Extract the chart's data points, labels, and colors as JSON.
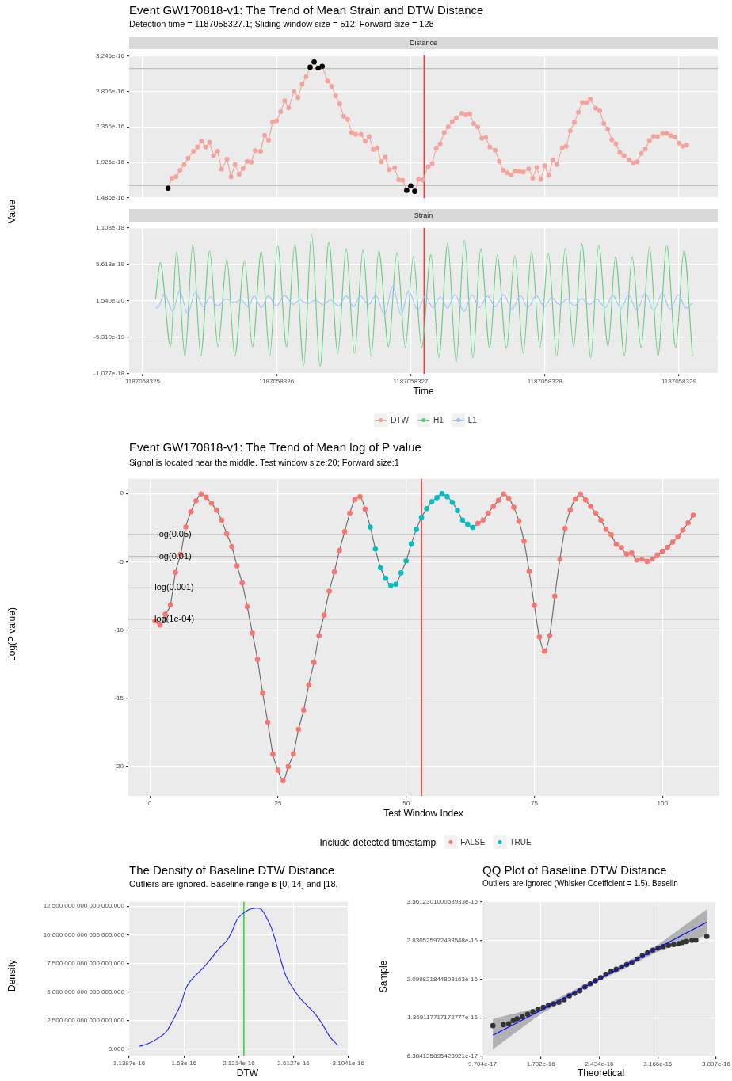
{
  "chart_data": [
    {
      "type": "line",
      "title": "Event GW170818-v1: The Trend of Mean Strain and DTW Distance",
      "subtitle": "Detection time = 1187058327.1; Sliding window size = 512; Forward size = 128",
      "ylabel": "Value",
      "annotations": [
        "Distance"
      ],
      "legend": "bottom",
      "marker": "circle",
      "grid": true,
      "tick_labels": "y",
      "xlim": [
        1187058324.9,
        1187058329.29
      ],
      "xticks": [
        1187058325,
        1187058326,
        1187058327,
        1187058328,
        1187058329
      ],
      "ylim": [
        1.484e-16,
        3.252e-16
      ],
      "yticks": [
        1.486e-16,
        1.926e-16,
        2.366e-16,
        2.806e-16,
        3.246e-16
      ],
      "ref_lines": [
        {
          "axis": "y",
          "value": 3.087e-16,
          "color": "#bfbfbf"
        },
        {
          "axis": "y",
          "value": 1.639e-16,
          "color": "#bfbfbf"
        },
        {
          "axis": "x",
          "value": 1187058327.1,
          "color": "#f53c3c"
        }
      ],
      "series": [
        {
          "name": "DTW",
          "type": "line",
          "color": "#f4a39c",
          "x": [
            1187058325.19,
            1187058325.22,
            1187058325.25,
            1187058325.28,
            1187058325.31,
            1187058325.34,
            1187058325.38,
            1187058325.41,
            1187058325.44,
            1187058325.47,
            1187058325.5,
            1187058325.53,
            1187058325.56,
            1187058325.59,
            1187058325.63,
            1187058325.66,
            1187058325.69,
            1187058325.72,
            1187058325.75,
            1187058325.78,
            1187058325.81,
            1187058325.84,
            1187058325.88,
            1187058325.91,
            1187058325.94,
            1187058325.97,
            1187058326,
            1187058326.03,
            1187058326.06,
            1187058326.09,
            1187058326.13,
            1187058326.16,
            1187058326.19,
            1187058326.22,
            1187058326.25,
            1187058326.28,
            1187058326.31,
            1187058326.34,
            1187058326.38,
            1187058326.41,
            1187058326.44,
            1187058326.47,
            1187058326.5,
            1187058326.53,
            1187058326.56,
            1187058326.59,
            1187058326.63,
            1187058326.66,
            1187058326.69,
            1187058326.72,
            1187058326.75,
            1187058326.78,
            1187058326.81,
            1187058326.84,
            1187058326.88,
            1187058326.91,
            1187058326.94,
            1187058326.97,
            1187058327,
            1187058327.03,
            1187058327.06,
            1187058327.09,
            1187058327.13,
            1187058327.16,
            1187058327.19,
            1187058327.22,
            1187058327.25,
            1187058327.28,
            1187058327.31,
            1187058327.34,
            1187058327.38,
            1187058327.41,
            1187058327.44,
            1187058327.47,
            1187058327.5,
            1187058327.53,
            1187058327.56,
            1187058327.59,
            1187058327.63,
            1187058327.66,
            1187058327.69,
            1187058327.72,
            1187058327.75,
            1187058327.78,
            1187058327.81,
            1187058327.84,
            1187058327.88,
            1187058327.91,
            1187058327.94,
            1187058327.97,
            1187058328,
            1187058328.03,
            1187058328.06,
            1187058328.09,
            1187058328.13,
            1187058328.16,
            1187058328.19,
            1187058328.22,
            1187058328.25,
            1187058328.28,
            1187058328.31,
            1187058328.34,
            1187058328.38,
            1187058328.41,
            1187058328.44,
            1187058328.47,
            1187058328.5,
            1187058328.53,
            1187058328.56,
            1187058328.59,
            1187058328.63,
            1187058328.66,
            1187058328.69,
            1187058328.72,
            1187058328.75,
            1187058328.78,
            1187058328.81,
            1187058328.84,
            1187058328.88,
            1187058328.91,
            1187058328.94,
            1187058328.97,
            1187058329,
            1187058329.03,
            1187058329.06
          ],
          "values": [
            1.606e-16,
            1.732e-16,
            1.748e-16,
            1.83e-16,
            1.901e-16,
            1.978e-16,
            2.065e-16,
            2.115e-16,
            2.191e-16,
            2.115e-16,
            2.175e-16,
            2.011e-16,
            2.065e-16,
            1.841e-16,
            1.967e-16,
            1.748e-16,
            1.901e-16,
            1.781e-16,
            1.852e-16,
            1.94e-16,
            1.929e-16,
            2.071e-16,
            2.065e-16,
            2.262e-16,
            2.202e-16,
            2.426e-16,
            2.442e-16,
            2.552e-16,
            2.688e-16,
            2.601e-16,
            2.803e-16,
            2.727e-16,
            2.896e-16,
            2.989e-16,
            3.104e-16,
            3.169e-16,
            3.093e-16,
            3.115e-16,
            2.934e-16,
            2.869e-16,
            2.749e-16,
            2.65e-16,
            2.497e-16,
            2.459e-16,
            2.295e-16,
            2.273e-16,
            2.273e-16,
            2.191e-16,
            2.246e-16,
            2.087e-16,
            2.109e-16,
            1.934e-16,
            1.994e-16,
            1.836e-16,
            1.858e-16,
            1.71e-16,
            1.705e-16,
            1.579e-16,
            1.634e-16,
            1.568e-16,
            1.716e-16,
            1.71e-16,
            1.874e-16,
            1.912e-16,
            2.104e-16,
            2.158e-16,
            2.295e-16,
            2.366e-16,
            2.432e-16,
            2.475e-16,
            2.535e-16,
            2.514e-16,
            2.524e-16,
            2.404e-16,
            2.366e-16,
            2.224e-16,
            2.235e-16,
            2.115e-16,
            2.076e-16,
            1.94e-16,
            1.83e-16,
            1.798e-16,
            1.77e-16,
            1.819e-16,
            1.814e-16,
            1.808e-16,
            1.847e-16,
            1.732e-16,
            1.863e-16,
            1.716e-16,
            1.885e-16,
            1.765e-16,
            1.956e-16,
            1.901e-16,
            2.109e-16,
            2.125e-16,
            2.317e-16,
            2.421e-16,
            2.546e-16,
            2.667e-16,
            2.667e-16,
            2.705e-16,
            2.596e-16,
            2.563e-16,
            2.41e-16,
            2.339e-16,
            2.207e-16,
            2.158e-16,
            2.049e-16,
            2.011e-16,
            1.956e-16,
            1.923e-16,
            1.934e-16,
            2.038e-16,
            2.093e-16,
            2.197e-16,
            2.251e-16,
            2.246e-16,
            2.284e-16,
            2.284e-16,
            2.257e-16,
            2.24e-16,
            2.164e-16,
            2.125e-16,
            2.142e-16
          ]
        },
        {
          "type": "scatter",
          "color": "#000000",
          "x": [
            1187058325.19,
            1187058326.25,
            1187058326.28,
            1187058326.31,
            1187058326.34,
            1187058326.97,
            1187058327,
            1187058327.03
          ],
          "values": [
            1.606e-16,
            3.104e-16,
            3.169e-16,
            3.093e-16,
            3.115e-16,
            1.579e-16,
            1.634e-16,
            1.568e-16
          ]
        }
      ]
    },
    {
      "type": "line",
      "xlabel": "Time",
      "annotations": [
        "Strain"
      ],
      "legend": "bottom",
      "marker": "none",
      "grid": true,
      "xlim": [
        1187058324.9,
        1187058329.29
      ],
      "xticks": [
        1187058325,
        1187058326,
        1187058327,
        1187058328,
        1187058329
      ],
      "ylim": [
        -1.077e-18,
        1.108e-18
      ],
      "yticks": [
        -1.077e-18,
        {
          "value": -5.31e-19,
          "label": "-5.310e-19"
        },
        {
          "value": 1.54e-20,
          "label": "1.540e-20"
        },
        5.618e-19,
        1.108e-18
      ],
      "ref_lines": [
        {
          "axis": "x",
          "value": 1187058327.1,
          "color": "#f53c3c"
        }
      ],
      "series": [
        {
          "name": "H1",
          "color": "#5fcd7b",
          "x": [
            1187058325.097,
            1187058325.132,
            1187058325.209,
            1187058325.254,
            1187058325.316,
            1187058325.375,
            1187058325.434,
            1187058325.5,
            1187058325.563,
            1187058325.629,
            1187058325.688,
            1187058325.761,
            1187058325.82,
            1187058325.886,
            1187058325.949,
            1187058326.008,
            1187058326.074,
            1187058326.136,
            1187058326.202,
            1187058326.261,
            1187058326.324,
            1187058326.39,
            1187058326.456,
            1187058326.519,
            1187058326.581,
            1187058326.644,
            1187058326.706,
            1187058326.762,
            1187058326.835,
            1187058326.897,
            1187058326.96,
            1187058327.019,
            1187058327.082,
            1187058327.151,
            1187058327.21,
            1187058327.276,
            1187058327.339,
            1187058327.401,
            1187058327.464,
            1187058327.523,
            1187058327.589,
            1187058327.645,
            1187058327.714,
            1187058327.777,
            1187058327.839,
            1187058327.902,
            1187058327.964,
            1187058328.027,
            1187058328.089,
            1187058328.152,
            1187058328.215,
            1187058328.277,
            1187058328.343,
            1187058328.402,
            1187058328.472,
            1187058328.527,
            1187058328.593,
            1187058328.652,
            1187058328.718,
            1187058328.781,
            1187058328.844,
            1187058328.91,
            1187058328.976,
            1187058329.038,
            1187058329.101
          ],
          "values": [
            4.2e-20,
            5.85e-19,
            -6.71e-19,
            7.62e-19,
            -8.07e-19,
            8.64e-19,
            -8.07e-19,
            7.62e-19,
            -6.71e-19,
            6.33e-19,
            -8.07e-19,
            6.19e-19,
            -6.71e-19,
            7.55e-19,
            -8.07e-19,
            8.43e-19,
            -6.71e-19,
            8.57e-19,
            -9.56e-19,
            1.013e-18,
            -9.69e-19,
            8.91e-19,
            -7.66e-19,
            7.96e-19,
            -7.66e-19,
            7.75e-19,
            -8.07e-19,
            7.62e-19,
            -6.71e-19,
            7.41e-19,
            -6.84e-19,
            6.74e-19,
            -6.84e-19,
            7.07e-19,
            -8.34e-19,
            8.77e-19,
            -9.02e-19,
            9.25e-19,
            -8.34e-19,
            7.96e-19,
            -6.98e-19,
            7.01e-19,
            -6.98e-19,
            6.94e-19,
            -7.66e-19,
            7.55e-19,
            -6.84e-19,
            7.21e-19,
            -8.07e-19,
            7.96e-19,
            -6.71e-19,
            8.64e-19,
            -8.34e-19,
            8.5e-19,
            -6.71e-19,
            6.74e-19,
            -8.07e-19,
            6.74e-19,
            -6.84e-19,
            8.23e-19,
            -8.07e-19,
            8.5e-19,
            -6.84e-19,
            7.69e-19,
            -8.07e-19
          ]
        },
        {
          "name": "L1",
          "color": "#9ec2fb",
          "x": [
            1187058325.097,
            1187058325.111,
            1187058325.163,
            1187058325.226,
            1187058325.275,
            1187058325.337,
            1187058325.393,
            1187058325.455,
            1187058325.504,
            1187058325.56,
            1187058325.622,
            1187058325.678,
            1187058325.733,
            1187058325.789,
            1187058325.831,
            1187058325.886,
            1187058325.938,
            1187058325.997,
            1187058326.06,
            1187058326.123,
            1187058326.171,
            1187058326.234,
            1187058326.289,
            1187058326.345,
            1187058326.4,
            1187058326.463,
            1187058326.519,
            1187058326.574,
            1187058326.623,
            1187058326.685,
            1187058326.741,
            1187058326.804,
            1187058326.866,
            1187058326.929,
            1187058326.984,
            1187058327.054,
            1187058327.109,
            1187058327.165,
            1187058327.221,
            1187058327.276,
            1187058327.328,
            1187058327.398,
            1187058327.457,
            1187058327.513,
            1187058327.572,
            1187058327.631,
            1187058327.693,
            1187058327.756,
            1187058327.818,
            1187058327.874,
            1187058327.937,
            1187058327.999,
            1187058328.048,
            1187058328.11,
            1187058328.166,
            1187058328.222,
            1187058328.274,
            1187058328.333,
            1187058328.388,
            1187058328.451,
            1187058328.506,
            1187058328.569,
            1187058328.625,
            1187058328.687,
            1187058328.75,
            1187058328.812,
            1187058328.875,
            1187058328.934,
            1187058328.997,
            1187058329.052,
            1187058329.101
          ],
          "values": [
            -7.3e-20,
            -9.4e-20,
            1.17e-19,
            -1.41e-19,
            1.64e-19,
            -1.75e-19,
            1.44e-19,
            -7.3e-20,
            7.6e-20,
            -6e-20,
            4.2e-20,
            -5e-21,
            2.9e-20,
            -7.3e-20,
            9e-20,
            -8.7e-20,
            9e-20,
            -6e-20,
            9.6e-20,
            -3.9e-20,
            2.9e-20,
            -2.6e-20,
            2.9e-20,
            -3.9e-20,
            2.9e-20,
            -6e-20,
            9e-20,
            -7.3e-20,
            9e-20,
            -3.9e-20,
            9.6e-20,
            -1.96e-19,
            2.32e-19,
            -1.96e-19,
            1.64e-19,
            -1.28e-19,
            9.6e-20,
            -8.7e-20,
            7.6e-20,
            -9.4e-20,
            1.1e-19,
            -1.41e-19,
            1.1e-19,
            -8.7e-20,
            9e-20,
            -7.3e-20,
            1.1e-19,
            -1.07e-19,
            9.6e-20,
            -8.7e-20,
            9.6e-20,
            -7.3e-20,
            6.3e-20,
            -3.9e-20,
            4.2e-20,
            -6e-20,
            4.9e-20,
            -3.9e-20,
            4.2e-20,
            -8.7e-20,
            9.6e-20,
            -9.4e-20,
            9.6e-20,
            -1.28e-19,
            1.3e-19,
            -1.28e-19,
            1.3e-19,
            -1.07e-19,
            1.1e-19,
            -9.4e-20,
            -1.9e-20
          ]
        }
      ]
    },
    {
      "type": "line",
      "title": "Event GW170818-v1: The Trend of Mean log of P value",
      "subtitle": "Signal is located near the middle. Test window size:20; Forward size:1",
      "xlabel": "Test Window Index",
      "ylabel": "Log(P value)",
      "legend": "bottom",
      "legend_title": "Include detected timestamp",
      "grid": true,
      "xlim": [
        -4.2,
        111.1
      ],
      "xticks": [
        0,
        25,
        50,
        75,
        100
      ],
      "ylim": [
        -22.15,
        1.07
      ],
      "yticks": [
        -20,
        -15,
        -10,
        -5,
        0
      ],
      "ref_lines": [
        {
          "axis": "y",
          "value": -2.996,
          "label": "log(0.05)",
          "color": "#bfbfbf"
        },
        {
          "axis": "y",
          "value": -4.605,
          "label": "log(0.01)",
          "color": "#bfbfbf"
        },
        {
          "axis": "y",
          "value": -6.908,
          "label": "log(0.001)",
          "color": "#bfbfbf"
        },
        {
          "axis": "y",
          "value": -9.21,
          "label": "log(1e-04)",
          "color": "#bfbfbf"
        },
        {
          "axis": "x",
          "value": 53,
          "color": "#f53c3c"
        }
      ],
      "series": [
        {
          "type": "line",
          "color": "#666666",
          "x": [
            1,
            2,
            3,
            4,
            5,
            6,
            7,
            8,
            9,
            10,
            11,
            12,
            13,
            14,
            15,
            16,
            17,
            18,
            19,
            20,
            21,
            22,
            23,
            24,
            25,
            26,
            27,
            28,
            29,
            30,
            31,
            32,
            33,
            34,
            35,
            36,
            37,
            38,
            39,
            40,
            41,
            42,
            43,
            44,
            45,
            46,
            47,
            48,
            49,
            50,
            51,
            52,
            53,
            54,
            55,
            56,
            57,
            58,
            59,
            60,
            61,
            62,
            63,
            64,
            65,
            66,
            67,
            68,
            69,
            70,
            71,
            72,
            73,
            74,
            75,
            76,
            77,
            78,
            79,
            80,
            81,
            82,
            83,
            84,
            85,
            86,
            87,
            88,
            89,
            90,
            91,
            92,
            93,
            94,
            95,
            96,
            97,
            98,
            99,
            100,
            101,
            102,
            103,
            104,
            105,
            106
          ],
          "values": [
            -9.33,
            -9.63,
            -8.83,
            -8.15,
            -5.77,
            -4.46,
            -2.45,
            -1.34,
            -0.54,
            -0.03,
            -0.27,
            -0.7,
            -1.21,
            -1.95,
            -2.95,
            -3.89,
            -5.3,
            -6.54,
            -8.29,
            -10.23,
            -12.15,
            -14.6,
            -16.75,
            -19.09,
            -20.27,
            -21.04,
            -20,
            -19.06,
            -17.28,
            -15.87,
            -14.03,
            -12.38,
            -10.4,
            -8.89,
            -7.15,
            -5.74,
            -4.16,
            -2.79,
            -1.44,
            -0.44,
            -0.23,
            -1.14,
            -2.45,
            -4.06,
            -5.44,
            -6.21,
            -6.74,
            -6.64,
            -5.81,
            -4.93,
            -3.69,
            -2.62,
            -1.74,
            -1.11,
            -0.6,
            -0.3,
            0,
            -0.23,
            -0.64,
            -1.24,
            -1.95,
            -2.25,
            -2.48,
            -2.18,
            -1.95,
            -1.44,
            -0.94,
            -0.5,
            -0.03,
            -0.34,
            -1.01,
            -2.01,
            -3.49,
            -5.7,
            -8.19,
            -10.5,
            -11.54,
            -10.4,
            -7.52,
            -4.8,
            -2.55,
            -1.21,
            -0.4,
            -0.03,
            -0.47,
            -0.94,
            -1.44,
            -1.95,
            -2.62,
            -3.02,
            -3.72,
            -3.96,
            -4.43,
            -4.36,
            -4.87,
            -4.8,
            -4.97,
            -4.8,
            -4.5,
            -4.23,
            -3.93,
            -3.56,
            -3.15,
            -2.68,
            -2.15,
            -1.58
          ]
        },
        {
          "name": "FALSE",
          "type": "scatter",
          "color": "#f8766d",
          "x": [
            1,
            2,
            3,
            4,
            5,
            6,
            7,
            8,
            9,
            10,
            11,
            12,
            13,
            14,
            15,
            16,
            17,
            18,
            19,
            20,
            21,
            22,
            23,
            24,
            25,
            26,
            27,
            28,
            29,
            30,
            31,
            32,
            33,
            34,
            35,
            36,
            37,
            38,
            39,
            40,
            41,
            42,
            64,
            65,
            66,
            67,
            68,
            69,
            70,
            71,
            72,
            73,
            74,
            75,
            76,
            77,
            78,
            79,
            80,
            81,
            82,
            83,
            84,
            85,
            86,
            87,
            88,
            89,
            90,
            91,
            92,
            93,
            94,
            95,
            96,
            97,
            98,
            99,
            100,
            101,
            102,
            103,
            104,
            105,
            106
          ],
          "values": [
            -9.33,
            -9.63,
            -8.83,
            -8.15,
            -5.77,
            -4.46,
            -2.45,
            -1.34,
            -0.54,
            -0.03,
            -0.27,
            -0.7,
            -1.21,
            -1.95,
            -2.95,
            -3.89,
            -5.3,
            -6.54,
            -8.29,
            -10.23,
            -12.15,
            -14.6,
            -16.75,
            -19.09,
            -20.27,
            -21.04,
            -20,
            -19.06,
            -17.28,
            -15.87,
            -14.03,
            -12.38,
            -10.4,
            -8.89,
            -7.15,
            -5.74,
            -4.16,
            -2.79,
            -1.44,
            -0.44,
            -0.23,
            -1.14,
            -2.18,
            -1.95,
            -1.44,
            -0.94,
            -0.5,
            -0.03,
            -0.34,
            -1.01,
            -2.01,
            -3.49,
            -5.7,
            -8.19,
            -10.5,
            -11.54,
            -10.4,
            -7.52,
            -4.8,
            -2.55,
            -1.21,
            -0.4,
            -0.03,
            -0.47,
            -0.94,
            -1.44,
            -1.95,
            -2.62,
            -3.02,
            -3.72,
            -3.96,
            -4.43,
            -4.36,
            -4.87,
            -4.8,
            -4.97,
            -4.8,
            -4.5,
            -4.23,
            -3.93,
            -3.56,
            -3.15,
            -2.68,
            -2.15,
            -1.58
          ]
        },
        {
          "name": "TRUE",
          "type": "scatter",
          "color": "#00bfc4",
          "x": [
            43,
            44,
            45,
            46,
            47,
            48,
            49,
            50,
            51,
            52,
            53,
            54,
            55,
            56,
            57,
            58,
            59,
            60,
            61,
            62,
            63
          ],
          "values": [
            -2.45,
            -4.06,
            -5.44,
            -6.21,
            -6.74,
            -6.64,
            -5.81,
            -4.93,
            -3.69,
            -2.62,
            -1.74,
            -1.11,
            -0.6,
            -0.3,
            0,
            -0.23,
            -0.64,
            -1.24,
            -1.95,
            -2.25,
            -2.48
          ]
        }
      ]
    },
    {
      "type": "line",
      "title": "The Density of Baseline DTW Distance",
      "subtitle": "Outliers are ignored. Baseline range is [0, 14] and [18,",
      "xlabel": "DTW",
      "ylabel": "Density",
      "grid": true,
      "xlim": [
        1.1387e-16,
        3.11e-16
      ],
      "xticks": [
        1.1387e-16,
        1.63e-16,
        2.1214e-16,
        2.6127e-16,
        3.1041e-16
      ],
      "ylim": [
        -555000000000000.0,
        1.2877e+16
      ],
      "yticks": [
        {
          "value": 0,
          "label": "0.000"
        },
        {
          "value": 2500000000000000.0,
          "label": "2 500 000 000 000 000.000"
        },
        {
          "value": 5000000000000000.0,
          "label": "5 000 000 000 000 000.000"
        },
        {
          "value": 7500000000000000.0,
          "label": "7 500 000 000 000 000.000"
        },
        {
          "value": 1e+16,
          "label": "10 000 000 000 000 000.000"
        },
        {
          "value": 1.25e+16,
          "label": "12 500 000 000 000 000.000"
        }
      ],
      "ref_lines": [
        {
          "axis": "x",
          "value": 2.167e-16,
          "color": "#33dd33"
        }
      ],
      "series": [
        {
          "color": "#2020ff",
          "x": [
            1.233e-16,
            1.298e-16,
            1.386e-16,
            1.473e-16,
            1.538e-16,
            1.604e-16,
            1.648e-16,
            1.691e-16,
            1.757e-16,
            1.822e-16,
            1.888e-16,
            1.953e-16,
            2.019e-16,
            2.062e-16,
            2.106e-16,
            2.167e-16,
            2.215e-16,
            2.281e-16,
            2.324e-16,
            2.368e-16,
            2.412e-16,
            2.455e-16,
            2.499e-16,
            2.543e-16,
            2.608e-16,
            2.674e-16,
            2.739e-16,
            2.805e-16,
            2.87e-16,
            2.936e-16,
            3.012e-16
          ],
          "values": [
            266000000000000.0,
            444000000000000.0,
            888000000000000.0,
            1554000000000000.0,
            2664000000000000.0,
            3996000000000000.0,
            5329000000000000.0,
            5995000000000000.0,
            6661000000000000.0,
            7327000000000000.0,
            8104000000000000.0,
            8881000000000000.0,
            9547000000000000.0,
            1.0324e+16,
            1.1323e+16,
            1.1923e+16,
            1.2211e+16,
            1.2322e+16,
            1.2211e+16,
            1.1545e+16,
            1.0657e+16,
            9325000000000000.0,
            7771000000000000.0,
            6439000000000000.0,
            5329000000000000.0,
            4440000000000000.0,
            3774000000000000.0,
            3108000000000000.0,
            2220000000000000.0,
            1110000000000000.0,
            333000000000000.0
          ]
        }
      ]
    },
    {
      "type": "scatter",
      "title": "QQ Plot of Baseline DTW Distance",
      "subtitle": "Outliers are ignored (Whisker Coefficient = 1.5). Baselin",
      "xlabel": "Theoretical",
      "ylabel": "Sample",
      "grid": true,
      "xlim": [
        9.704e-17,
        3.897e-16
      ],
      "xticks": [
        9.704e-17,
        1.702e-16,
        2.434e-16,
        3.166e-16,
        3.897e-16
      ],
      "ylim": [
        6.384135895423921e-17,
        3.561230100063933e-16
      ],
      "yticks": [
        {
          "value": 6.384135895423921e-17,
          "label": "6.384135895423921e-17"
        },
        {
          "value": 1.369117717172777e-16,
          "label": "1.369117717172777e-16"
        },
        {
          "value": 2.099821844803163e-16,
          "label": "2.099821844803163e-16"
        },
        {
          "value": 2.830525972433548e-16,
          "label": "2.830525972433548e-16"
        },
        {
          "value": 3.561230100063933e-16,
          "label": "3.561230100063933e-16"
        }
      ],
      "series": [
        {
          "type": "scatter",
          "color": "#333333",
          "x": [
            1.101e-16,
            1.232e-16,
            1.3e-16,
            1.356e-16,
            1.405e-16,
            1.47e-16,
            1.536e-16,
            1.601e-16,
            1.666e-16,
            1.732e-16,
            1.797e-16,
            1.862e-16,
            1.928e-16,
            1.993e-16,
            2.058e-16,
            2.124e-16,
            2.189e-16,
            2.254e-16,
            2.32e-16,
            2.385e-16,
            2.45e-16,
            2.516e-16,
            2.581e-16,
            2.646e-16,
            2.712e-16,
            2.777e-16,
            2.842e-16,
            2.908e-16,
            2.973e-16,
            3.038e-16,
            3.104e-16,
            3.169e-16,
            3.234e-16,
            3.3e-16,
            3.365e-16,
            3.43e-16,
            3.479e-16,
            3.528e-16,
            3.594e-16,
            3.643e-16,
            3.78e-16
          ],
          "values": [
            1.22e-16,
            1.239e-16,
            1.254e-16,
            1.316e-16,
            1.35e-16,
            1.388e-16,
            1.436e-16,
            1.485e-16,
            1.528e-16,
            1.566e-16,
            1.605e-16,
            1.634e-16,
            1.662e-16,
            1.71e-16,
            1.783e-16,
            1.831e-16,
            1.879e-16,
            1.951e-16,
            2.013e-16,
            2.071e-16,
            2.129e-16,
            2.191e-16,
            2.249e-16,
            2.287e-16,
            2.331e-16,
            2.374e-16,
            2.417e-16,
            2.48e-16,
            2.542e-16,
            2.6e-16,
            2.648e-16,
            2.686e-16,
            2.715e-16,
            2.739e-16,
            2.754e-16,
            2.773e-16,
            2.792e-16,
            2.811e-16,
            2.831e-16,
            2.835e-16,
            2.907e-16
          ]
        },
        {
          "type": "line",
          "color": "#0000ff",
          "x": [
            1.101e-16,
            1.699e-16,
            2.447e-16,
            3.179e-16,
            3.78e-16
          ],
          "values": [
            1.04e-16,
            1.508e-16,
            2.113e-16,
            2.697e-16,
            3.177e-16
          ],
          "lower": [
            7.73e-17,
            1.44e-16,
            2.08e-16,
            2.63e-16,
            2.93e-16
          ],
          "upper": [
            1.35e-16,
            1.57e-16,
            2.15e-16,
            2.76e-16,
            3.42e-16
          ]
        }
      ]
    }
  ]
}
